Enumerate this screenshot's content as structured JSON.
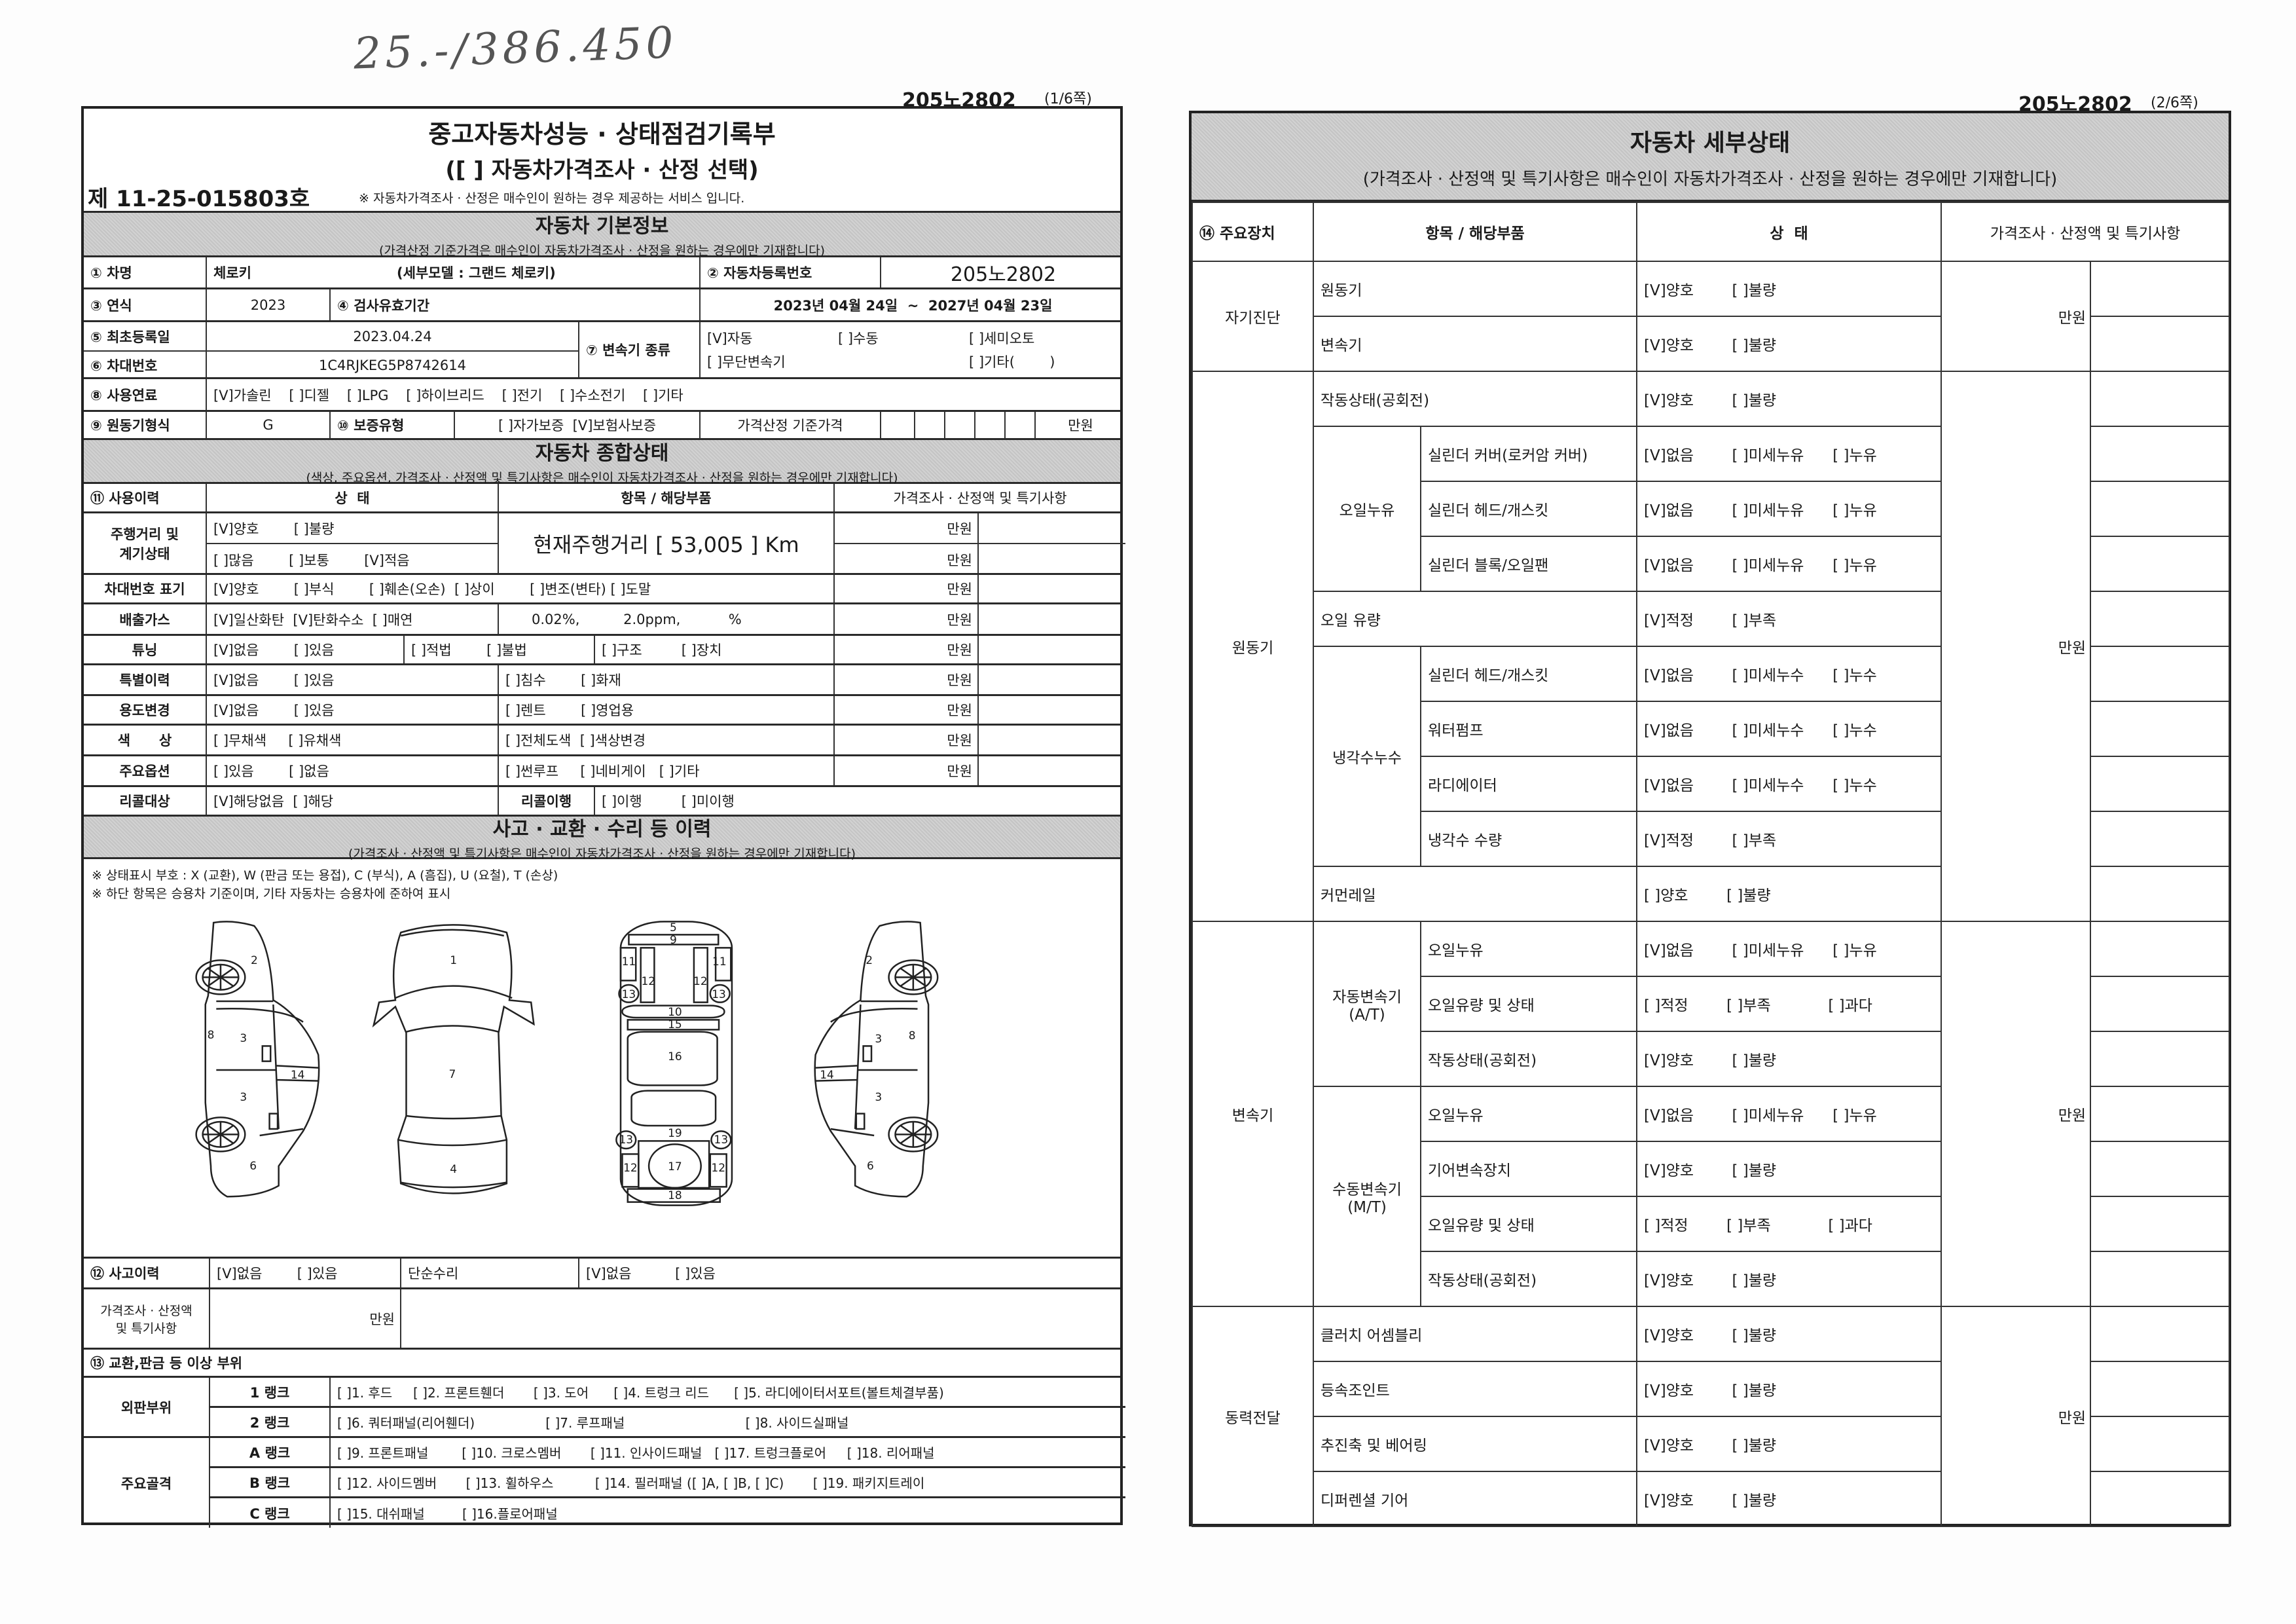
{
  "handwritten_note": "25.-/386.450",
  "page1": {
    "plate": "205노2802",
    "page_of": "(1/6쪽)",
    "title": "중고자동차성능 · 상태점검기록부",
    "subtitle": "([ ] 자동차가격조사 · 산정 선택)",
    "cert_no": "제 11-25-015803호",
    "notice": "※ 자동차가격조사 · 산정은 매수인이 원하는 경우 제공하는 서비스 입니다.",
    "basic": {
      "title": "자동차 기본정보",
      "note": "(가격산정 기준가격은 매수인이 자동차가격조사 · 산정을 원하는 경우에만 기재합니다)",
      "car_name_label": "① 차명",
      "car_name": "체로키",
      "sub_model": "(세부모델 : 그랜드 체로키)",
      "reg_no_label": "② 자동차등록번호",
      "reg_no": "205노2802",
      "year_label": "③ 연식",
      "year": "2023",
      "inspection_label": "④ 검사유효기간",
      "inspection_period": "2023년 04월 24일  ~  2027년 04월 23일",
      "first_reg_label": "⑤ 최초등록일",
      "first_reg": "2023.04.24",
      "vin_label": "⑥ 차대번호",
      "vin": "1C4RJKEG5P8742614",
      "transmission_label": "⑦ 변속기 종류",
      "transmission_options": [
        "[V]자동",
        "[ ]수동",
        "[ ]세미오토",
        "[ ]무단변속기",
        "",
        "[ ]기타(        )"
      ],
      "fuel_label": "⑧ 사용연료",
      "fuel_options": "[V]가솔린    [ ]디젤    [ ]LPG    [ ]하이브리드    [ ]전기    [ ]수소전기    [ ]기타",
      "engine_label": "⑨ 원동기형식",
      "engine": "G",
      "warranty_label": "⑩ 보증유형",
      "warranty_options": "[ ]자가보증  [V]보험사보증",
      "base_price_label": "가격산정 기준가격",
      "unit": "만원"
    },
    "overall": {
      "title": "자동차 종합상태",
      "note": "(색상, 주요옵션, 가격조사 · 산정액 및 특기사항은 매수인이 자동차가격조사 · 산정을 원하는 경우에만 기재합니다)",
      "headers": [
        "⑪ 사용이력",
        "상  태",
        "항목 / 해당부품",
        "가격조사 · 산정액 및 특기사항"
      ],
      "mileage_label": "주행거리 및\n계기상태",
      "mileage_status_1": "[V]양호        [ ]불량",
      "mileage_status_2": "[ ]많음        [ ]보통        [V]적음",
      "mileage_text": "현재주행거리 [ 53,005 ] Km",
      "vin_mark_label": "차대번호 표기",
      "vin_mark_status": "[V]양호        [ ]부식        [ ]훼손(오손)  [ ]상이        [ ]변조(변타) [ ]도말",
      "emission_label": "배출가스",
      "emission_status": "[V]일산화탄  [V]탄화수소  [ ]매연",
      "emission_values": "0.02%,          2.0ppm,           %",
      "tuning_label": "튜닝",
      "tuning_status": "[V]없음        [ ]있음",
      "tuning_legal": "[ ]적법        [ ]불법",
      "tuning_type": "[ ]구조         [ ]장치",
      "special_label": "특별이력",
      "special_status": "[V]없음        [ ]있음",
      "special_items": "[ ]침수        [ ]화재",
      "usage_label": "용도변경",
      "usage_status": "[V]없음        [ ]있음",
      "usage_items": "[ ]렌트        [ ]영업용",
      "color_label": "색      상",
      "color_status": "[ ]무채색     [ ]유채색",
      "color_items": "[ ]전체도색  [ ]색상변경",
      "option_label": "주요옵션",
      "option_status": "[ ]있음        [ ]없음",
      "option_items": "[ ]썬루프     [ ]네비게이   [ ]기타",
      "recall_label": "리콜대상",
      "recall_status": "[V]해당없음  [ ]해당",
      "recall_done_label": "리콜이행",
      "recall_done": "[ ]이행         [ ]미이행",
      "unit": "만원"
    },
    "accident": {
      "title": "사고 · 교환 · 수리 등 이력",
      "note": "(가격조사 · 산정액 및 특기사항은 매수인이 자동차가격조사 · 산정을 원하는 경우에만 기재합니다)",
      "legend_1": "※ 상태표시 부호 : X (교환), W (판금 또는 용접), C (부식), A (흠집), U (요철), T (손상)",
      "legend_2": "※ 하단 항목은 승용차 기준이며, 기타 자동차는 승용차에 준하여 표시",
      "diagram_labels": [
        "2",
        "3",
        "3",
        "14",
        "6",
        "8",
        "1",
        "7",
        "4",
        "5",
        "9",
        "11",
        "11",
        "12",
        "12",
        "13",
        "13",
        "10",
        "15",
        "16",
        "19",
        "13",
        "13",
        "12",
        "17",
        "12",
        "18",
        "2",
        "3",
        "8",
        "14",
        "3",
        "6"
      ],
      "history_label": "⑫ 사고이력",
      "history_status": "[V]없음        [ ]있음",
      "simple_repair_label": "단순수리",
      "simple_repair_status": "[V]없음          [ ]있음",
      "price_label": "가격조사 · 산정액\n및 특기사항",
      "unit": "만원",
      "parts_label": "⑬ 교환,판금 등 이상 부위",
      "outer_label": "외판부위",
      "frame_label": "주요골격",
      "ranks": [
        {
          "rank": "1 랭크",
          "items": "[ ]1. 후드     [ ]2. 프론트휀더       [ ]3. 도어      [ ]4. 트렁크 리드      [ ]5. 라디에이터서포트(볼트체결부품)"
        },
        {
          "rank": "2 랭크",
          "items": "[ ]6. 쿼터패널(리어휀더)                 [ ]7. 루프패널                             [ ]8. 사이드실패널"
        },
        {
          "rank": "A 랭크",
          "items": "[ ]9. 프론트패널        [ ]10. 크로스멤버       [ ]11. 인사이드패널   [ ]17. 트렁크플로어     [ ]18. 리어패널"
        },
        {
          "rank": "B 랭크",
          "items": "[ ]12. 사이드멤버       [ ]13. 휠하우스          [ ]14. 필러패널 ([ ]A, [ ]B, [ ]C)       [ ]19. 패키지트레이"
        },
        {
          "rank": "C 랭크",
          "items": "[ ]15. 대쉬패널         [ ]16.플로어패널"
        }
      ]
    }
  },
  "page2": {
    "plate": "205노2802",
    "page_of": "(2/6쪽)",
    "title": "자동차 세부상태",
    "note": "(가격조사 · 산정액 및 특기사항은 매수인이 자동차가격조사 · 산정을 원하는 경우에만 기재합니다)",
    "headers": [
      "⑭ 주요장치",
      "항목 / 해당부품",
      "상  태",
      "가격조사 · 산정액 및 특기사항"
    ],
    "unit": "만원",
    "groups": {
      "self_diag": "자기진단",
      "engine": "원동기",
      "oil_leak": "오일누유",
      "coolant_leak": "냉각수누수",
      "transmission": "변속기",
      "at": "자동변속기\n(A/T)",
      "mt": "수동변속기\n(M/T)",
      "power": "동력전달"
    },
    "rows": [
      {
        "item": "원동기",
        "status": "[V]양호        [ ]불량"
      },
      {
        "item": "변속기",
        "status": "[V]양호        [ ]불량"
      },
      {
        "item": "작동상태(공회전)",
        "status": "[V]양호        [ ]불량"
      },
      {
        "item": "실린더 커버(로커암 커버)",
        "status": "[V]없음        [ ]미세누유      [ ]누유"
      },
      {
        "item": "실린더 헤드/개스킷",
        "status": "[V]없음        [ ]미세누유      [ ]누유"
      },
      {
        "item": "실린더 블록/오일팬",
        "status": "[V]없음        [ ]미세누유      [ ]누유"
      },
      {
        "item": "오일 유량",
        "status": "[V]적정        [ ]부족"
      },
      {
        "item": "실린더 헤드/개스킷",
        "status": "[V]없음        [ ]미세누수      [ ]누수"
      },
      {
        "item": "워터펌프",
        "status": "[V]없음        [ ]미세누수      [ ]누수"
      },
      {
        "item": "라디에이터",
        "status": "[V]없음        [ ]미세누수      [ ]누수"
      },
      {
        "item": "냉각수 수량",
        "status": "[V]적정        [ ]부족"
      },
      {
        "item": "커먼레일",
        "status": "[ ]양호        [ ]불량"
      },
      {
        "item": "오일누유",
        "status": "[V]없음        [ ]미세누유      [ ]누유"
      },
      {
        "item": "오일유량 및 상태",
        "status": "[ ]적정        [ ]부족            [ ]과다"
      },
      {
        "item": "작동상태(공회전)",
        "status": "[V]양호        [ ]불량"
      },
      {
        "item": "오일누유",
        "status": "[V]없음        [ ]미세누유      [ ]누유"
      },
      {
        "item": "기어변속장치",
        "status": "[V]양호        [ ]불량"
      },
      {
        "item": "오일유량 및 상태",
        "status": "[ ]적정        [ ]부족            [ ]과다"
      },
      {
        "item": "작동상태(공회전)",
        "status": "[V]양호        [ ]불량"
      },
      {
        "item": "클러치 어셈블리",
        "status": "[V]양호        [ ]불량"
      },
      {
        "item": "등속조인트",
        "status": "[V]양호        [ ]불량"
      },
      {
        "item": "추진축 및 베어링",
        "status": "[V]양호        [ ]불량"
      },
      {
        "item": "디퍼렌셜 기어",
        "status": "[V]양호        [ ]불량"
      }
    ]
  }
}
